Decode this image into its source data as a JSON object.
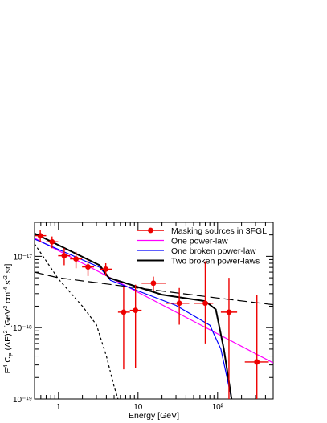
{
  "chart_data": {
    "type": "scatter",
    "xlabel": "Energy [GeV]",
    "ylabel": "E⁴ C_P (ΔE)² [GeV² cm⁻⁴ s⁻² sr]",
    "x_scale": "log",
    "y_scale": "log",
    "xlim": [
      0.5,
      500
    ],
    "ylim": [
      1e-19,
      3e-17
    ],
    "x_tick_labels": [
      "1",
      "10",
      "10²"
    ],
    "y_tick_labels": [
      "10⁻¹⁷",
      "10⁻¹⁸",
      "10⁻¹⁹"
    ],
    "legend_position": "top-right",
    "data_points": {
      "name": "Masking sources in 3FGL",
      "color": "#ee0000",
      "points": [
        {
          "x": 0.59,
          "y": 1.95e-17,
          "xlo": 0.5,
          "xhi": 0.7,
          "ylo": 1.6e-17,
          "yhi": 2.35e-17
        },
        {
          "x": 0.83,
          "y": 1.6e-17,
          "xlo": 0.7,
          "xhi": 0.99,
          "ylo": 1.3e-17,
          "yhi": 1.9e-17
        },
        {
          "x": 1.18,
          "y": 1.02e-17,
          "xlo": 0.99,
          "xhi": 1.4,
          "ylo": 7.5e-18,
          "yhi": 1.3e-17
        },
        {
          "x": 1.66,
          "y": 9.2e-18,
          "xlo": 1.4,
          "xhi": 1.98,
          "ylo": 6.8e-18,
          "yhi": 1.16e-17
        },
        {
          "x": 2.35,
          "y": 7.1e-18,
          "xlo": 1.98,
          "xhi": 2.8,
          "ylo": 5.3e-18,
          "yhi": 9e-18
        },
        {
          "x": 3.93,
          "y": 6.6e-18,
          "xlo": 3.3,
          "xhi": 4.7,
          "ylo": 5.3e-18,
          "yhi": 8e-18
        },
        {
          "x": 6.6,
          "y": 1.65e-18,
          "xlo": 5.6,
          "xhi": 7.9,
          "ylo": 2.6e-19,
          "yhi": 3.8e-18
        },
        {
          "x": 9.3,
          "y": 1.75e-18,
          "xlo": 7.9,
          "xhi": 11.1,
          "ylo": 2.7e-19,
          "yhi": 4e-18
        },
        {
          "x": 15.6,
          "y": 4.2e-18,
          "xlo": 11.1,
          "xhi": 22.2,
          "ylo": 3.3e-18,
          "yhi": 5.2e-18
        },
        {
          "x": 33,
          "y": 2.2e-18,
          "xlo": 22.2,
          "xhi": 44,
          "ylo": 1.1e-18,
          "yhi": 3.6e-18
        },
        {
          "x": 70,
          "y": 2.2e-18,
          "xlo": 50,
          "xhi": 88,
          "ylo": 6e-19,
          "yhi": 8.5e-18
        },
        {
          "x": 139,
          "y": 1.65e-18,
          "xlo": 110,
          "xhi": 176,
          "ylo": 1e-19,
          "yhi": 5e-18
        },
        {
          "x": 312,
          "y": 3.3e-19,
          "xlo": 220,
          "xhi": 440,
          "ylo": 1e-19,
          "yhi": 2.9e-18
        }
      ]
    },
    "series": [
      {
        "name": "One power-law",
        "color": "#ff00ff",
        "x": [
          0.5,
          500
        ],
        "y": [
          1.8e-17,
          3.2e-19
        ]
      },
      {
        "name": "One broken power-law",
        "color": "#0000ff",
        "x": [
          0.5,
          3.3,
          4.5,
          30,
          80,
          110,
          150
        ],
        "y": [
          1.75e-17,
          7e-18,
          4.6e-18,
          2.05e-18,
          1.08e-18,
          5e-19,
          1e-19
        ]
      },
      {
        "name": "Two broken power-laws",
        "color": "#000000",
        "x": [
          0.5,
          3.3,
          4.3,
          20,
          70,
          95,
          120,
          150
        ],
        "y": [
          2.1e-17,
          7.5e-18,
          5e-18,
          2.9e-18,
          2.35e-18,
          1.8e-18,
          5e-19,
          1e-19
        ]
      },
      {
        "color": "#000000",
        "dash": "long",
        "x": [
          0.5,
          1,
          10,
          100,
          500
        ],
        "y": [
          6e-18,
          5e-18,
          3.6e-18,
          2.6e-18,
          2.1e-18
        ]
      },
      {
        "color": "#000000",
        "dash": "short",
        "x": [
          0.5,
          1,
          2,
          3,
          4,
          5,
          5.6
        ],
        "y": [
          1.5e-17,
          4.8e-18,
          2e-18,
          1.1e-18,
          4e-19,
          1.5e-19,
          1e-19
        ]
      }
    ]
  }
}
